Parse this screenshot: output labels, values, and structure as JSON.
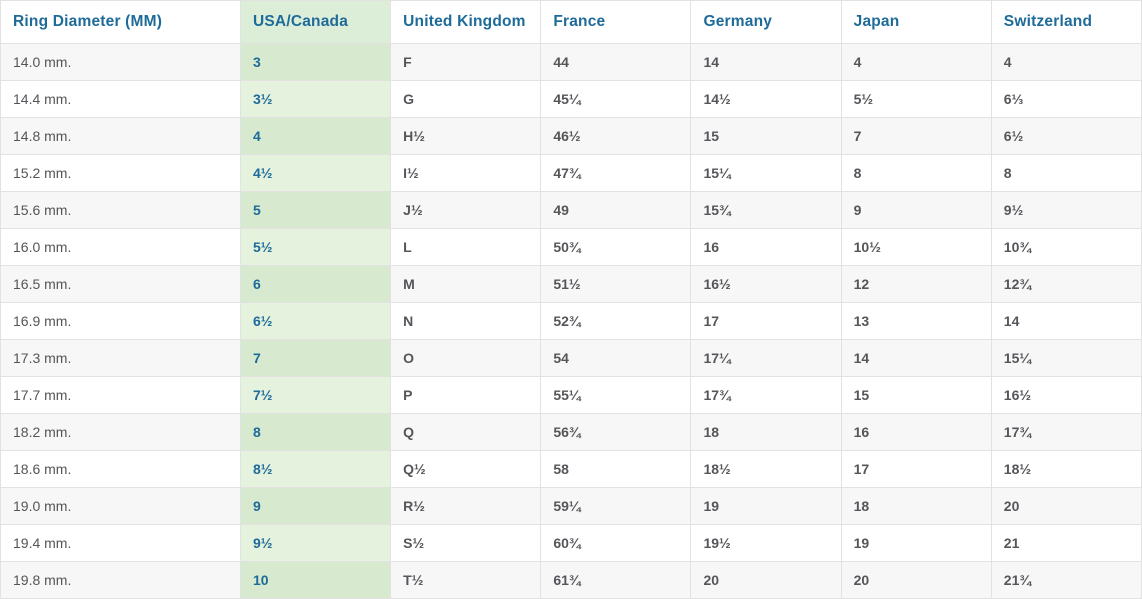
{
  "colors": {
    "header_text": "#1e6b99",
    "cell_text": "#55565a",
    "diameter_cell_text": "#545558",
    "stripe_row_bg": "#f7f7f7",
    "white_row_bg": "#ffffff",
    "highlight_column_header_bg": "#dcedd8",
    "highlight_column_stripe_bg": "#d7e9ce",
    "highlight_column_white_bg": "#e4f2de",
    "border": "#e2e2e2"
  },
  "chart_data": {
    "type": "table",
    "columns": [
      "Ring Diameter (MM)",
      "USA/Canada",
      "United Kingdom",
      "France",
      "Germany",
      "Japan",
      "Switzerland"
    ],
    "column_keys": [
      "ring-diameter-mm",
      "usa-canada",
      "united-kingdom",
      "france",
      "germany",
      "japan",
      "switzerland"
    ],
    "highlighted_column": "USA/Canada",
    "layout": {
      "striped": true,
      "header_position": "top",
      "grid": true
    },
    "rows": [
      [
        "14.0 mm.",
        "3",
        "F",
        "44",
        "14",
        "4",
        "4"
      ],
      [
        "14.4 mm.",
        "3½",
        "G",
        "45¼",
        "14½",
        "5½",
        "6⅓"
      ],
      [
        "14.8 mm.",
        "4",
        "H½",
        "46½",
        "15",
        "7",
        "6½"
      ],
      [
        "15.2 mm.",
        "4½",
        "I½",
        "47¾",
        "15¼",
        "8",
        "8"
      ],
      [
        "15.6 mm.",
        "5",
        "J½",
        "49",
        "15¾",
        "9",
        "9½"
      ],
      [
        "16.0 mm.",
        "5½",
        "L",
        "50¾",
        "16",
        "10½",
        "10¾"
      ],
      [
        "16.5 mm.",
        "6",
        "M",
        "51½",
        "16½",
        "12",
        "12¾"
      ],
      [
        "16.9 mm.",
        "6½",
        "N",
        "52¾",
        "17",
        "13",
        "14"
      ],
      [
        "17.3 mm.",
        "7",
        "O",
        "54",
        "17¼",
        "14",
        "15¼"
      ],
      [
        "17.7 mm.",
        "7½",
        "P",
        "55¼",
        "17¾",
        "15",
        "16½"
      ],
      [
        "18.2 mm.",
        "8",
        "Q",
        "56¾",
        "18",
        "16",
        "17¾"
      ],
      [
        "18.6 mm.",
        "8½",
        "Q½",
        "58",
        "18½",
        "17",
        "18½"
      ],
      [
        "19.0 mm.",
        "9",
        "R½",
        "59¼",
        "19",
        "18",
        "20"
      ],
      [
        "19.4 mm.",
        "9½",
        "S½",
        "60¾",
        "19½",
        "19",
        "21"
      ],
      [
        "19.8 mm.",
        "10",
        "T½",
        "61¾",
        "20",
        "20",
        "21¾"
      ]
    ]
  }
}
